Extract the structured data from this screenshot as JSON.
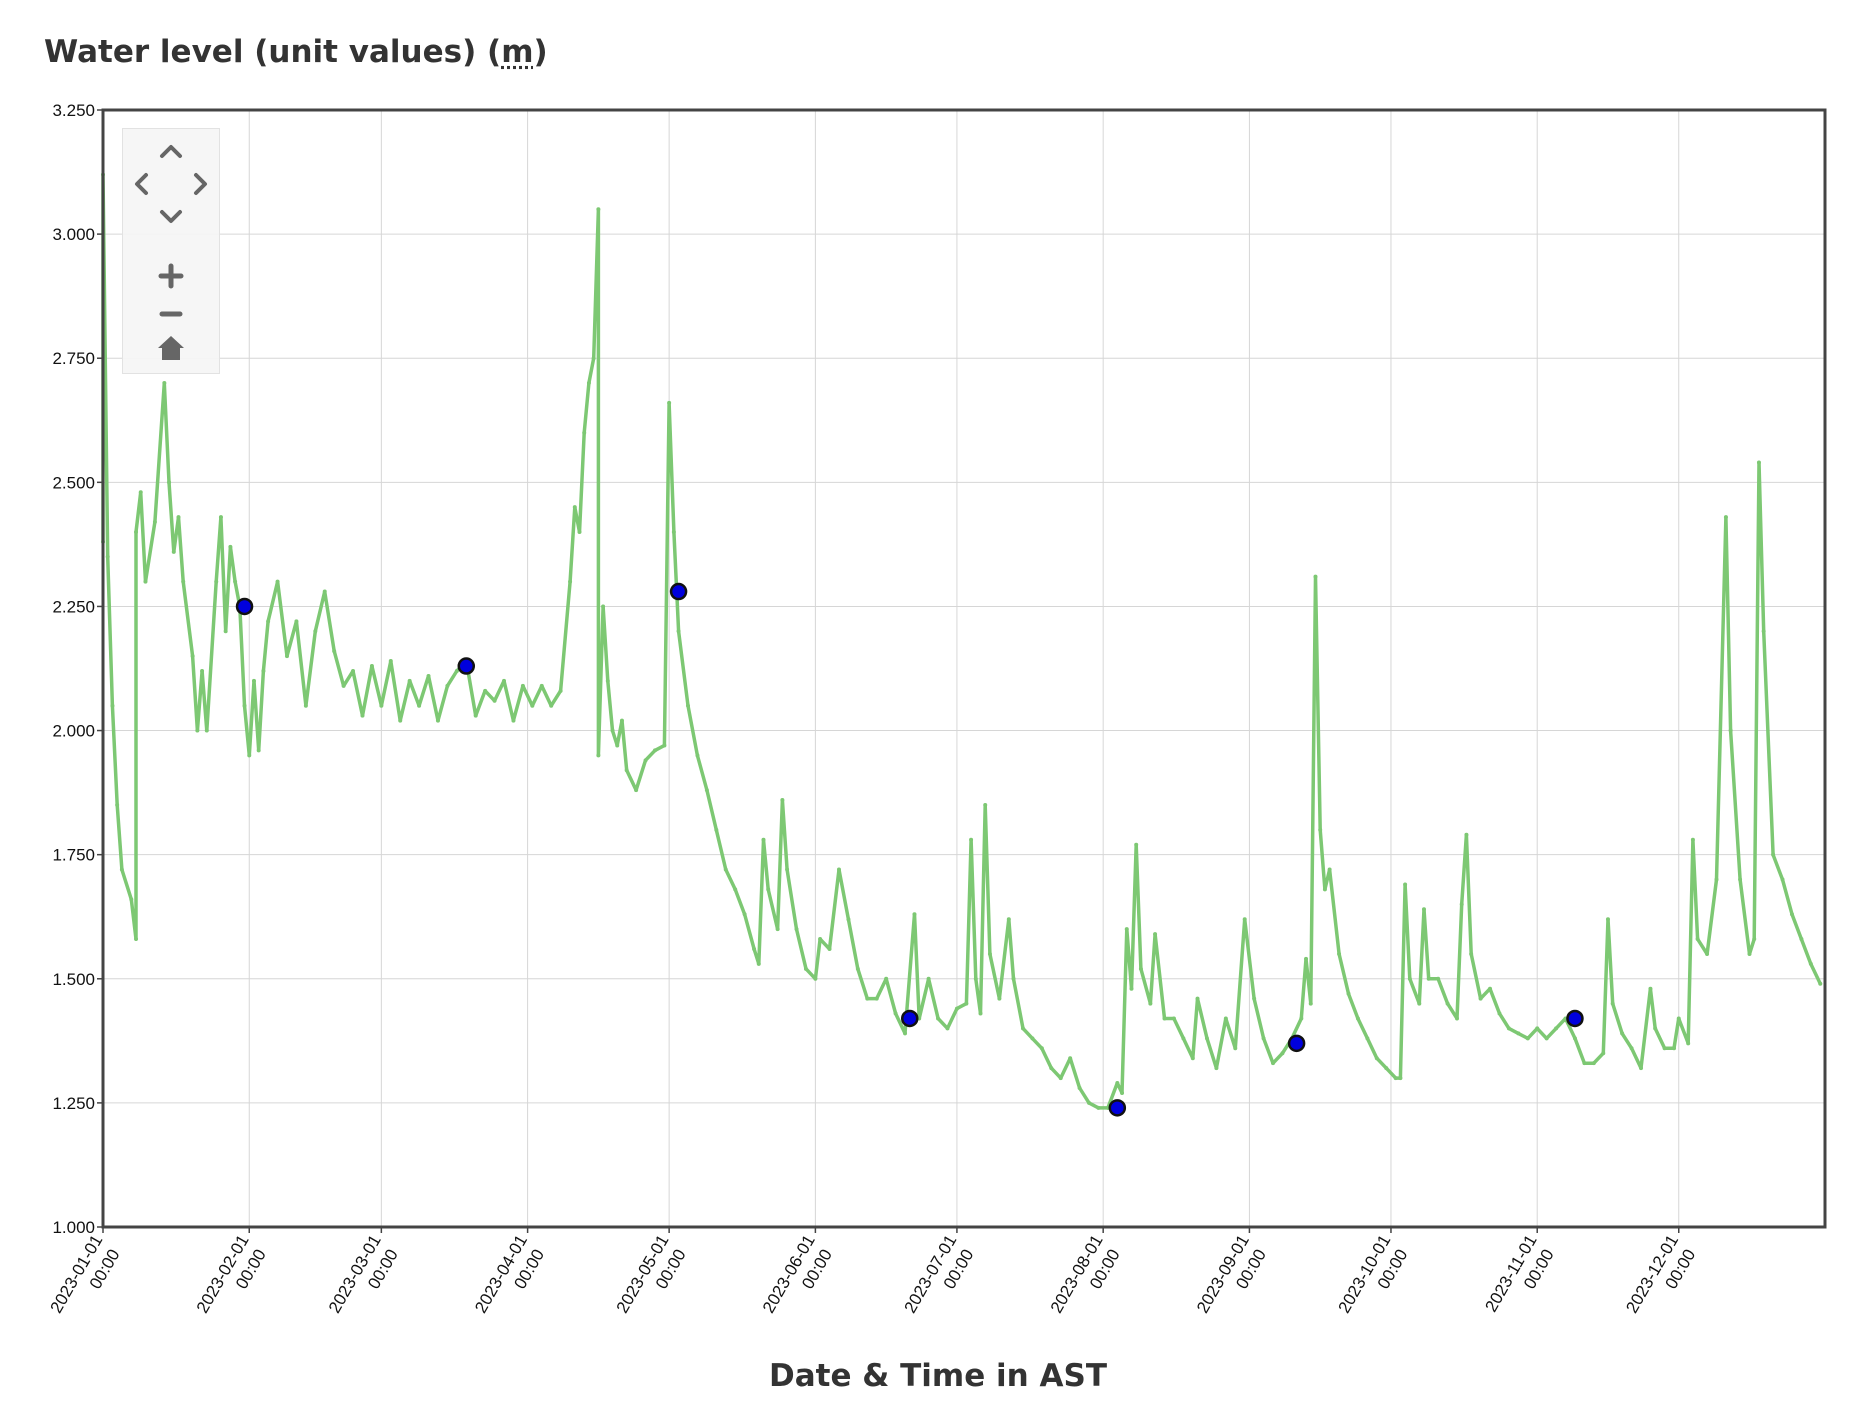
{
  "title": "Water level (unit values) (",
  "title_unit": "m",
  "title_end": ")",
  "nav_controls": {
    "icons": [
      "chevron-up-icon",
      "chevron-left-icon",
      "chevron-right-icon",
      "chevron-down-icon",
      "plus-icon",
      "minus-icon",
      "home-icon"
    ],
    "icon_color": "#666666"
  },
  "chart_data": {
    "type": "line",
    "title": "Water level (unit values) (m)",
    "xlabel": "Date & Time in AST",
    "ylabel": "",
    "ylim": [
      1.0,
      3.25
    ],
    "xlim": [
      "2023-01-01",
      "2023-12-31"
    ],
    "y_ticks": [
      "1.000",
      "1.250",
      "1.500",
      "1.750",
      "2.000",
      "2.250",
      "2.500",
      "2.750",
      "3.000",
      "3.250"
    ],
    "x_ticks": [
      {
        "date": "2023-01-01",
        "line1": "2023-01-01",
        "line2": "00:00"
      },
      {
        "date": "2023-02-01",
        "line1": "2023-02-01",
        "line2": "00:00"
      },
      {
        "date": "2023-03-01",
        "line1": "2023-03-01",
        "line2": "00:00"
      },
      {
        "date": "2023-04-01",
        "line1": "2023-04-01",
        "line2": "00:00"
      },
      {
        "date": "2023-05-01",
        "line1": "2023-05-01",
        "line2": "00:00"
      },
      {
        "date": "2023-06-01",
        "line1": "2023-06-01",
        "line2": "00:00"
      },
      {
        "date": "2023-07-01",
        "line1": "2023-07-01",
        "line2": "00:00"
      },
      {
        "date": "2023-08-01",
        "line1": "2023-08-01",
        "line2": "00:00"
      },
      {
        "date": "2023-09-01",
        "line1": "2023-09-01",
        "line2": "00:00"
      },
      {
        "date": "2023-10-01",
        "line1": "2023-10-01",
        "line2": "00:00"
      },
      {
        "date": "2023-11-01",
        "line1": "2023-11-01",
        "line2": "00:00"
      },
      {
        "date": "2023-12-01",
        "line1": "2023-12-01",
        "line2": "00:00"
      }
    ],
    "grid": true,
    "series": [
      {
        "style": "line",
        "color": "#7dc873",
        "points": [
          [
            "2023-01-01",
            2.38
          ],
          [
            "2023-01-01",
            3.12
          ],
          [
            "2023-01-02",
            2.35
          ],
          [
            "2023-01-03",
            2.05
          ],
          [
            "2023-01-04",
            1.85
          ],
          [
            "2023-01-05",
            1.72
          ],
          [
            "2023-01-07",
            1.66
          ],
          [
            "2023-01-08",
            1.58
          ],
          [
            "2023-01-08",
            2.4
          ],
          [
            "2023-01-09",
            2.48
          ],
          [
            "2023-01-10",
            2.3
          ],
          [
            "2023-01-12",
            2.42
          ],
          [
            "2023-01-14",
            2.7
          ],
          [
            "2023-01-15",
            2.5
          ],
          [
            "2023-01-16",
            2.36
          ],
          [
            "2023-01-17",
            2.43
          ],
          [
            "2023-01-18",
            2.3
          ],
          [
            "2023-01-20",
            2.15
          ],
          [
            "2023-01-21",
            2.0
          ],
          [
            "2023-01-22",
            2.12
          ],
          [
            "2023-01-23",
            2.0
          ],
          [
            "2023-01-25",
            2.3
          ],
          [
            "2023-01-26",
            2.43
          ],
          [
            "2023-01-27",
            2.2
          ],
          [
            "2023-01-28",
            2.37
          ],
          [
            "2023-01-29",
            2.3
          ],
          [
            "2023-01-30",
            2.25
          ],
          [
            "2023-01-31",
            2.05
          ],
          [
            "2023-02-01",
            1.95
          ],
          [
            "2023-02-02",
            2.1
          ],
          [
            "2023-02-03",
            1.96
          ],
          [
            "2023-02-04",
            2.12
          ],
          [
            "2023-02-05",
            2.22
          ],
          [
            "2023-02-07",
            2.3
          ],
          [
            "2023-02-09",
            2.15
          ],
          [
            "2023-02-11",
            2.22
          ],
          [
            "2023-02-13",
            2.05
          ],
          [
            "2023-02-15",
            2.2
          ],
          [
            "2023-02-17",
            2.28
          ],
          [
            "2023-02-19",
            2.16
          ],
          [
            "2023-02-21",
            2.09
          ],
          [
            "2023-02-23",
            2.12
          ],
          [
            "2023-02-25",
            2.03
          ],
          [
            "2023-02-27",
            2.13
          ],
          [
            "2023-03-01",
            2.05
          ],
          [
            "2023-03-03",
            2.14
          ],
          [
            "2023-03-05",
            2.02
          ],
          [
            "2023-03-07",
            2.1
          ],
          [
            "2023-03-09",
            2.05
          ],
          [
            "2023-03-11",
            2.11
          ],
          [
            "2023-03-13",
            2.02
          ],
          [
            "2023-03-15",
            2.09
          ],
          [
            "2023-03-17",
            2.12
          ],
          [
            "2023-03-19",
            2.14
          ],
          [
            "2023-03-21",
            2.03
          ],
          [
            "2023-03-23",
            2.08
          ],
          [
            "2023-03-25",
            2.06
          ],
          [
            "2023-03-27",
            2.1
          ],
          [
            "2023-03-29",
            2.02
          ],
          [
            "2023-03-31",
            2.09
          ],
          [
            "2023-04-02",
            2.05
          ],
          [
            "2023-04-04",
            2.09
          ],
          [
            "2023-04-06",
            2.05
          ],
          [
            "2023-04-08",
            2.08
          ],
          [
            "2023-04-10",
            2.3
          ],
          [
            "2023-04-11",
            2.45
          ],
          [
            "2023-04-12",
            2.4
          ],
          [
            "2023-04-13",
            2.6
          ],
          [
            "2023-04-14",
            2.7
          ],
          [
            "2023-04-15",
            2.75
          ],
          [
            "2023-04-16",
            3.05
          ],
          [
            "2023-04-16",
            1.95
          ],
          [
            "2023-04-17",
            2.25
          ],
          [
            "2023-04-18",
            2.1
          ],
          [
            "2023-04-19",
            2.0
          ],
          [
            "2023-04-20",
            1.97
          ],
          [
            "2023-04-21",
            2.02
          ],
          [
            "2023-04-22",
            1.92
          ],
          [
            "2023-04-24",
            1.88
          ],
          [
            "2023-04-26",
            1.94
          ],
          [
            "2023-04-28",
            1.96
          ],
          [
            "2023-04-30",
            1.97
          ],
          [
            "2023-05-01",
            2.66
          ],
          [
            "2023-05-02",
            2.4
          ],
          [
            "2023-05-03",
            2.2
          ],
          [
            "2023-05-05",
            2.05
          ],
          [
            "2023-05-07",
            1.95
          ],
          [
            "2023-05-09",
            1.88
          ],
          [
            "2023-05-11",
            1.8
          ],
          [
            "2023-05-13",
            1.72
          ],
          [
            "2023-05-15",
            1.68
          ],
          [
            "2023-05-17",
            1.63
          ],
          [
            "2023-05-19",
            1.56
          ],
          [
            "2023-05-20",
            1.53
          ],
          [
            "2023-05-21",
            1.78
          ],
          [
            "2023-05-22",
            1.68
          ],
          [
            "2023-05-24",
            1.6
          ],
          [
            "2023-05-25",
            1.86
          ],
          [
            "2023-05-26",
            1.72
          ],
          [
            "2023-05-28",
            1.6
          ],
          [
            "2023-05-30",
            1.52
          ],
          [
            "2023-06-01",
            1.5
          ],
          [
            "2023-06-02",
            1.58
          ],
          [
            "2023-06-04",
            1.56
          ],
          [
            "2023-06-06",
            1.72
          ],
          [
            "2023-06-08",
            1.62
          ],
          [
            "2023-06-10",
            1.52
          ],
          [
            "2023-06-12",
            1.46
          ],
          [
            "2023-06-14",
            1.46
          ],
          [
            "2023-06-16",
            1.5
          ],
          [
            "2023-06-18",
            1.43
          ],
          [
            "2023-06-20",
            1.39
          ],
          [
            "2023-06-22",
            1.63
          ],
          [
            "2023-06-23",
            1.42
          ],
          [
            "2023-06-25",
            1.5
          ],
          [
            "2023-06-27",
            1.42
          ],
          [
            "2023-06-29",
            1.4
          ],
          [
            "2023-07-01",
            1.44
          ],
          [
            "2023-07-03",
            1.45
          ],
          [
            "2023-07-04",
            1.78
          ],
          [
            "2023-07-05",
            1.5
          ],
          [
            "2023-07-06",
            1.43
          ],
          [
            "2023-07-07",
            1.85
          ],
          [
            "2023-07-08",
            1.55
          ],
          [
            "2023-07-10",
            1.46
          ],
          [
            "2023-07-12",
            1.62
          ],
          [
            "2023-07-13",
            1.5
          ],
          [
            "2023-07-15",
            1.4
          ],
          [
            "2023-07-17",
            1.38
          ],
          [
            "2023-07-19",
            1.36
          ],
          [
            "2023-07-21",
            1.32
          ],
          [
            "2023-07-23",
            1.3
          ],
          [
            "2023-07-25",
            1.34
          ],
          [
            "2023-07-27",
            1.28
          ],
          [
            "2023-07-29",
            1.25
          ],
          [
            "2023-07-31",
            1.24
          ],
          [
            "2023-08-02",
            1.24
          ],
          [
            "2023-08-04",
            1.29
          ],
          [
            "2023-08-05",
            1.27
          ],
          [
            "2023-08-06",
            1.6
          ],
          [
            "2023-08-07",
            1.48
          ],
          [
            "2023-08-08",
            1.77
          ],
          [
            "2023-08-09",
            1.52
          ],
          [
            "2023-08-11",
            1.45
          ],
          [
            "2023-08-12",
            1.59
          ],
          [
            "2023-08-14",
            1.42
          ],
          [
            "2023-08-16",
            1.42
          ],
          [
            "2023-08-18",
            1.38
          ],
          [
            "2023-08-20",
            1.34
          ],
          [
            "2023-08-21",
            1.46
          ],
          [
            "2023-08-23",
            1.38
          ],
          [
            "2023-08-25",
            1.32
          ],
          [
            "2023-08-27",
            1.42
          ],
          [
            "2023-08-29",
            1.36
          ],
          [
            "2023-08-31",
            1.62
          ],
          [
            "2023-09-02",
            1.46
          ],
          [
            "2023-09-04",
            1.38
          ],
          [
            "2023-09-06",
            1.33
          ],
          [
            "2023-09-08",
            1.35
          ],
          [
            "2023-09-10",
            1.38
          ],
          [
            "2023-09-12",
            1.42
          ],
          [
            "2023-09-13",
            1.54
          ],
          [
            "2023-09-14",
            1.45
          ],
          [
            "2023-09-15",
            2.31
          ],
          [
            "2023-09-16",
            1.8
          ],
          [
            "2023-09-17",
            1.68
          ],
          [
            "2023-09-18",
            1.72
          ],
          [
            "2023-09-20",
            1.55
          ],
          [
            "2023-09-22",
            1.47
          ],
          [
            "2023-09-24",
            1.42
          ],
          [
            "2023-09-26",
            1.38
          ],
          [
            "2023-09-28",
            1.34
          ],
          [
            "2023-09-30",
            1.32
          ],
          [
            "2023-10-02",
            1.3
          ],
          [
            "2023-10-03",
            1.3
          ],
          [
            "2023-10-04",
            1.69
          ],
          [
            "2023-10-05",
            1.5
          ],
          [
            "2023-10-07",
            1.45
          ],
          [
            "2023-10-08",
            1.64
          ],
          [
            "2023-10-09",
            1.5
          ],
          [
            "2023-10-11",
            1.5
          ],
          [
            "2023-10-13",
            1.45
          ],
          [
            "2023-10-15",
            1.42
          ],
          [
            "2023-10-16",
            1.65
          ],
          [
            "2023-10-17",
            1.79
          ],
          [
            "2023-10-18",
            1.55
          ],
          [
            "2023-10-20",
            1.46
          ],
          [
            "2023-10-22",
            1.48
          ],
          [
            "2023-10-24",
            1.43
          ],
          [
            "2023-10-26",
            1.4
          ],
          [
            "2023-10-28",
            1.39
          ],
          [
            "2023-10-30",
            1.38
          ],
          [
            "2023-11-01",
            1.4
          ],
          [
            "2023-11-03",
            1.38
          ],
          [
            "2023-11-05",
            1.4
          ],
          [
            "2023-11-07",
            1.42
          ],
          [
            "2023-11-09",
            1.38
          ],
          [
            "2023-11-11",
            1.33
          ],
          [
            "2023-11-13",
            1.33
          ],
          [
            "2023-11-15",
            1.35
          ],
          [
            "2023-11-16",
            1.62
          ],
          [
            "2023-11-17",
            1.45
          ],
          [
            "2023-11-19",
            1.39
          ],
          [
            "2023-11-21",
            1.36
          ],
          [
            "2023-11-23",
            1.32
          ],
          [
            "2023-11-25",
            1.48
          ],
          [
            "2023-11-26",
            1.4
          ],
          [
            "2023-11-28",
            1.36
          ],
          [
            "2023-11-30",
            1.36
          ],
          [
            "2023-12-01",
            1.42
          ],
          [
            "2023-12-03",
            1.37
          ],
          [
            "2023-12-04",
            1.78
          ],
          [
            "2023-12-05",
            1.58
          ],
          [
            "2023-12-07",
            1.55
          ],
          [
            "2023-12-09",
            1.7
          ],
          [
            "2023-12-11",
            2.43
          ],
          [
            "2023-12-12",
            2.0
          ],
          [
            "2023-12-14",
            1.7
          ],
          [
            "2023-12-16",
            1.55
          ],
          [
            "2023-12-17",
            1.58
          ],
          [
            "2023-12-18",
            2.54
          ],
          [
            "2023-12-19",
            2.2
          ],
          [
            "2023-12-21",
            1.75
          ],
          [
            "2023-12-23",
            1.7
          ],
          [
            "2023-12-25",
            1.63
          ],
          [
            "2023-12-27",
            1.58
          ],
          [
            "2023-12-29",
            1.53
          ],
          [
            "2023-12-31",
            1.49
          ]
        ]
      },
      {
        "style": "markers",
        "color": "#0000dd",
        "points": [
          [
            "2023-01-31",
            2.25
          ],
          [
            "2023-03-19",
            2.13
          ],
          [
            "2023-05-03",
            2.28
          ],
          [
            "2023-06-21",
            1.42
          ],
          [
            "2023-08-04",
            1.24
          ],
          [
            "2023-09-11",
            1.37
          ],
          [
            "2023-11-09",
            1.42
          ]
        ]
      }
    ]
  }
}
